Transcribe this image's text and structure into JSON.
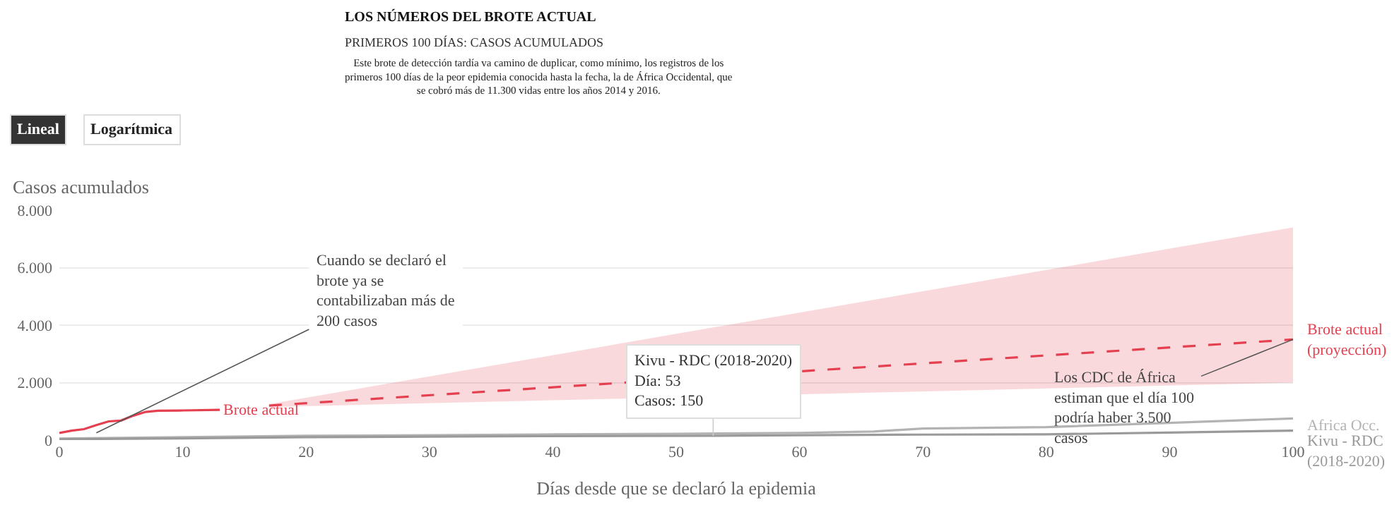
{
  "chart_data": {
    "type": "line",
    "title": "LOS NÚMEROS DEL BROTE ACTUAL",
    "subtitle": "PRIMEROS 100 DÍAS: CASOS ACUMULADOS",
    "xlabel": "Días desde que se declaró la epidemia",
    "ylabel": "Casos acumulados",
    "xlim": [
      0,
      100
    ],
    "xticks": [
      0,
      10,
      20,
      30,
      40,
      50,
      60,
      70,
      80,
      90,
      100
    ],
    "ylim": [
      0,
      8000
    ],
    "yticks": [
      0,
      {
        "value": 2000,
        "label": "2.000"
      },
      {
        "value": 4000,
        "label": "4.000"
      },
      {
        "value": 6000,
        "label": "6.000"
      },
      {
        "value": 8000,
        "label": "8.000"
      }
    ],
    "grid": "y",
    "legend": false,
    "marker": "none",
    "series": [
      {
        "name": "Africa Occ.",
        "color": "#b3b3b3",
        "x": [
          0,
          10,
          20,
          30,
          40,
          50,
          60,
          66,
          70,
          80,
          90,
          100
        ],
        "values": [
          50,
          100,
          150,
          170,
          200,
          220,
          250,
          300,
          400,
          450,
          600,
          750
        ]
      },
      {
        "name": "Kivu - RDC (2018-2020)",
        "color": "#9a9a9a",
        "x": [
          0,
          10,
          20,
          30,
          40,
          53,
          60,
          70,
          80,
          90,
          100
        ],
        "values": [
          30,
          60,
          100,
          120,
          140,
          150,
          170,
          190,
          200,
          260,
          330
        ]
      },
      {
        "name": "Brote actual",
        "color": "#e5404f",
        "x": [
          0,
          1,
          2,
          3,
          4,
          5,
          6,
          7,
          8,
          10,
          13
        ],
        "values": [
          250,
          330,
          380,
          520,
          650,
          680,
          850,
          980,
          1020,
          1030,
          1050
        ]
      },
      {
        "name": "Brote actual (proyección)",
        "color": "#e5404f",
        "line_style": "dashed",
        "x": [
          17,
          100
        ],
        "values": [
          1200,
          3500
        ],
        "lower": [
          1150,
          2000
        ],
        "upper": [
          1250,
          7400
        ]
      }
    ],
    "annotations": [
      "Este brote de detección tardía va camino de duplicar, como mínimo, los registros de los primeros 100 días de la peor epidemia conocida hasta la fecha, la de África Occidental, que se cobró más de 11.300 vidas entre los años 2014 y 2016.",
      "Lineal",
      "Logarítmica",
      {
        "text": "Cuando se declaró el brote ya se contabilizaban más de 200 casos",
        "x": 3,
        "y": 250
      },
      {
        "text": "Kivu - RDC (2018-2020)\nDía: 53\nCasos: 150",
        "x": 53,
        "y": 150
      },
      {
        "text": "Los CDC de África estiman que el día 100 podría haber 3.500 casos",
        "x": 100,
        "y": 3500
      }
    ]
  }
}
